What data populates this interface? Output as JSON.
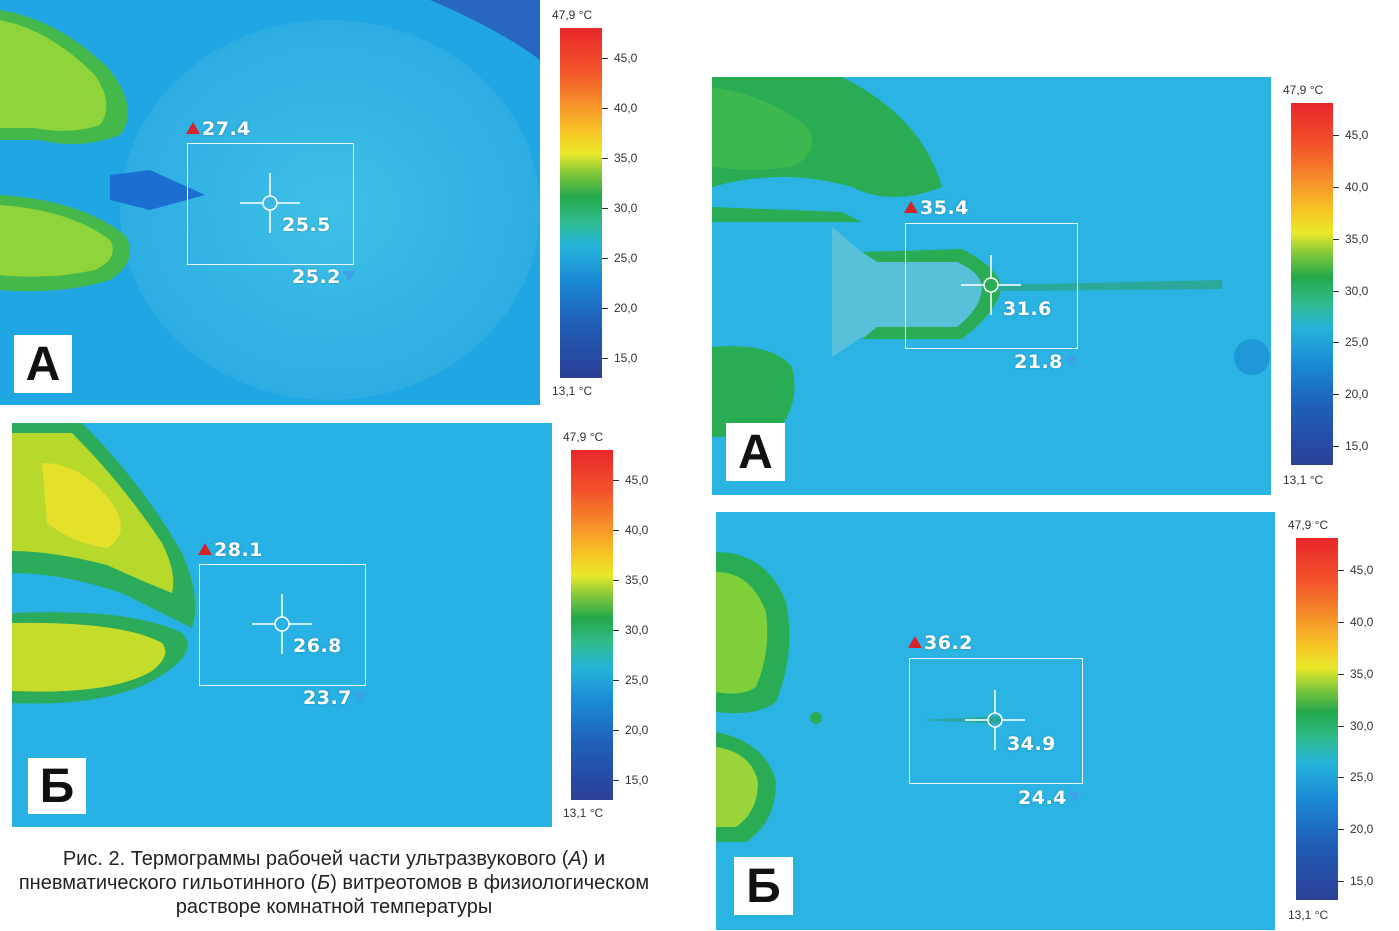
{
  "panels": [
    {
      "label": "А",
      "max_temp": "27.4",
      "center_temp": "25.5",
      "min_temp": "25.2"
    },
    {
      "label": "Б",
      "max_temp": "28.1",
      "center_temp": "26.8",
      "min_temp": "23.7"
    },
    {
      "label": "А",
      "max_temp": "35.4",
      "center_temp": "31.6",
      "min_temp": "21.8"
    },
    {
      "label": "Б",
      "max_temp": "36.2",
      "center_temp": "34.9",
      "min_temp": "24.4"
    }
  ],
  "scale": {
    "max_label": "47,9 °C",
    "min_label": "13,1 °C",
    "ticks": [
      "45,0",
      "40,0",
      "35,0",
      "30,0",
      "25,0",
      "20,0",
      "15,0"
    ]
  },
  "caption": {
    "prefix": "Рис. 2. Термограммы рабочей части ультразвукового (",
    "label_a": "А",
    "middle": ") и пневматического гильотинного (",
    "label_b": "Б",
    "suffix": ") витреотомов в физиологическом растворе комнатной температуры"
  }
}
